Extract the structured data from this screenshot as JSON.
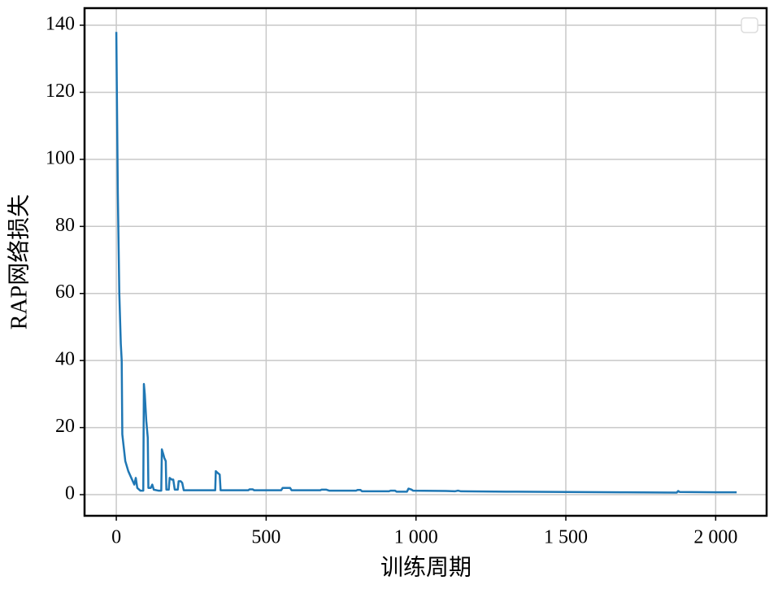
{
  "chart_data": {
    "type": "line",
    "x_label": "训练周期",
    "y_label": "RAP网络损失",
    "x": [
      0,
      5,
      10,
      15,
      18,
      20,
      25,
      30,
      40,
      50,
      60,
      65,
      70,
      80,
      90,
      92,
      95,
      100,
      105,
      107,
      115,
      120,
      125,
      140,
      150,
      152,
      157,
      160,
      165,
      167,
      175,
      178,
      185,
      190,
      195,
      205,
      208,
      215,
      220,
      225,
      240,
      260,
      330,
      332,
      338,
      345,
      348,
      400,
      440,
      445,
      455,
      460,
      550,
      555,
      580,
      585,
      680,
      685,
      700,
      710,
      800,
      805,
      815,
      820,
      910,
      915,
      930,
      935,
      970,
      975,
      985,
      990,
      1100,
      1130,
      1140,
      1150,
      1300,
      1500,
      1700,
      1870,
      1875,
      1880,
      2000,
      2070
    ],
    "series": [
      {
        "color": "#1f77b4",
        "values": [
          138,
          90,
          60,
          45,
          40,
          18,
          14,
          10,
          7,
          5,
          3,
          5,
          2,
          1.2,
          1.2,
          33,
          30,
          22,
          17,
          2,
          2,
          3,
          1.5,
          1.2,
          1.2,
          13.5,
          12,
          11,
          10,
          1.5,
          1.5,
          5,
          4.5,
          4.5,
          1.5,
          1.5,
          4,
          4,
          3.5,
          1.3,
          1.3,
          1.3,
          1.3,
          7,
          6.5,
          6,
          1.3,
          1.3,
          1.3,
          1.6,
          1.6,
          1.3,
          1.3,
          2,
          2,
          1.3,
          1.3,
          1.5,
          1.5,
          1.2,
          1.2,
          1.4,
          1.4,
          1,
          1,
          1.2,
          1.2,
          0.9,
          0.9,
          1.8,
          1.5,
          1.2,
          1.1,
          1,
          1.2,
          1,
          0.9,
          0.8,
          0.7,
          0.6,
          1.1,
          0.8,
          0.7,
          0.7
        ]
      }
    ],
    "xlim": [
      -106,
      2170
    ],
    "ylim": [
      -6.3,
      145.1
    ],
    "xticks": [
      0,
      500,
      {
        "value": 1000,
        "label": "1 000"
      },
      {
        "value": 1500,
        "label": "1 500"
      },
      {
        "value": 2000,
        "label": "2 000"
      }
    ],
    "yticks": [
      0,
      20,
      40,
      60,
      80,
      100,
      120,
      140
    ],
    "grid": true
  }
}
